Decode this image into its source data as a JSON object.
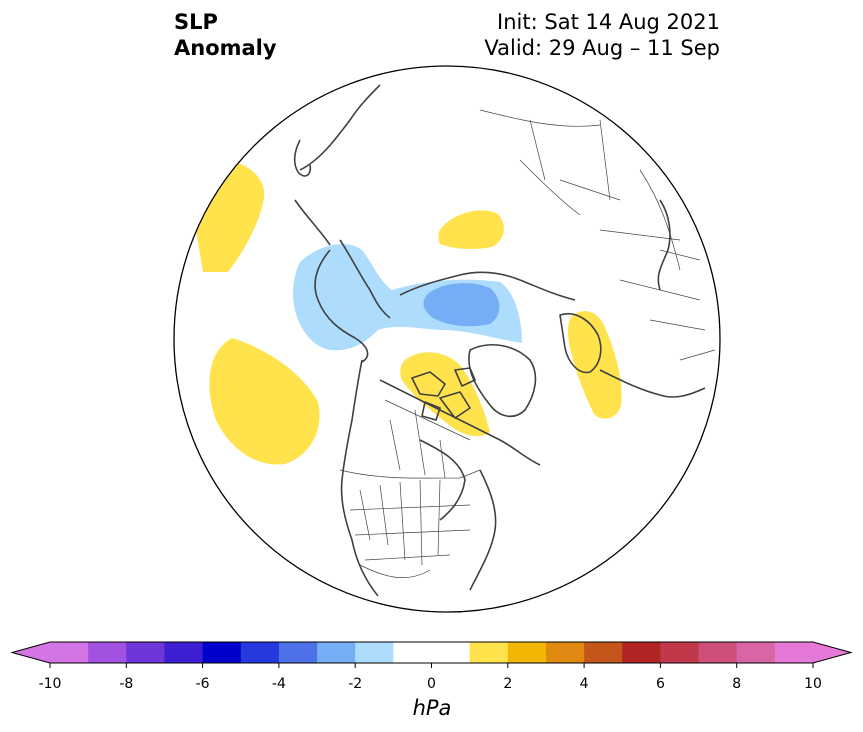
{
  "title": {
    "variable_line1": "SLP",
    "variable_line2": "Anomaly",
    "init": "Init: Sat 14 Aug 2021",
    "valid": "Valid: 29 Aug – 11 Sep"
  },
  "map": {
    "projection": "north-polar-orthographic",
    "region": "Northern Hemisphere",
    "features": [
      "coastlines",
      "country-borders",
      "us-state-borders"
    ],
    "anomaly_regions": [
      {
        "name": "north-atlantic-positive-left",
        "sign": "positive",
        "level_hpa": 1,
        "color": "#ffe24c"
      },
      {
        "name": "north-pacific-positive",
        "sign": "positive",
        "level_hpa": 1,
        "color": "#ffe24c"
      },
      {
        "name": "arctic-negative-band",
        "sign": "negative",
        "level_hpa": -1,
        "color": "#aedcfd"
      },
      {
        "name": "arctic-negative-core",
        "sign": "negative",
        "level_hpa": -2,
        "color": "#75aef4"
      },
      {
        "name": "eastern-siberia-positive",
        "sign": "positive",
        "level_hpa": 1,
        "color": "#ffe24c"
      },
      {
        "name": "canadian-archipelago-positive",
        "sign": "positive",
        "level_hpa": 1,
        "color": "#ffe24c"
      },
      {
        "name": "eurasia-north-positive",
        "sign": "positive",
        "level_hpa": 1,
        "color": "#ffe24c"
      }
    ]
  },
  "colorbar": {
    "units": "hPa",
    "ticks": [
      "-10",
      "-8",
      "-6",
      "-4",
      "-2",
      "0",
      "2",
      "4",
      "6",
      "8",
      "10"
    ],
    "bins": [
      {
        "from": -10,
        "to": -9,
        "color": "#d475e6"
      },
      {
        "from": -9,
        "to": -8,
        "color": "#a152e0"
      },
      {
        "from": -8,
        "to": -7,
        "color": "#6e36d9"
      },
      {
        "from": -7,
        "to": -6,
        "color": "#3e1ed2"
      },
      {
        "from": -6,
        "to": -5,
        "color": "#0000cd"
      },
      {
        "from": -5,
        "to": -4,
        "color": "#2539dc"
      },
      {
        "from": -4,
        "to": -3,
        "color": "#4e71ea"
      },
      {
        "from": -3,
        "to": -2,
        "color": "#75aef4"
      },
      {
        "from": -2,
        "to": -1,
        "color": "#aedcfd"
      },
      {
        "from": -1,
        "to": 1,
        "color": "#ffffff"
      },
      {
        "from": 1,
        "to": 2,
        "color": "#ffe24c"
      },
      {
        "from": 2,
        "to": 3,
        "color": "#f2b705"
      },
      {
        "from": 3,
        "to": 4,
        "color": "#e08910"
      },
      {
        "from": 4,
        "to": 5,
        "color": "#c5561b"
      },
      {
        "from": 5,
        "to": 6,
        "color": "#b02424"
      },
      {
        "from": 6,
        "to": 7,
        "color": "#c2384b"
      },
      {
        "from": 7,
        "to": 8,
        "color": "#ce4f78"
      },
      {
        "from": 8,
        "to": 9,
        "color": "#da65a6"
      },
      {
        "from": 9,
        "to": 10,
        "color": "#e579d8"
      }
    ],
    "extend_low_color": "#d475e6",
    "extend_high_color": "#e579d8"
  }
}
